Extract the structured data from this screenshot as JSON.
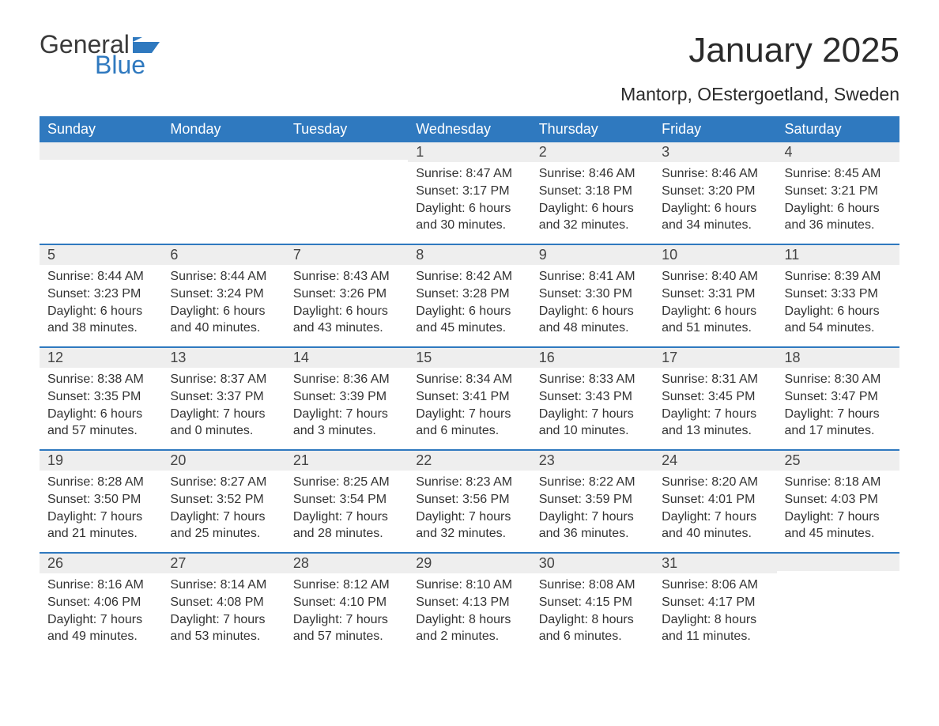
{
  "logo": {
    "text_general": "General",
    "text_blue": "Blue",
    "flag_color": "#2f79bf"
  },
  "title": "January 2025",
  "location": "Mantorp, OEstergoetland, Sweden",
  "colors": {
    "header_bg": "#2f79bf",
    "header_text": "#ffffff",
    "daynum_bg": "#eeeeee",
    "week_divider": "#2f79bf",
    "body_text": "#333333",
    "background": "#ffffff"
  },
  "day_labels": [
    "Sunday",
    "Monday",
    "Tuesday",
    "Wednesday",
    "Thursday",
    "Friday",
    "Saturday"
  ],
  "weeks": [
    [
      {
        "empty": true
      },
      {
        "empty": true
      },
      {
        "empty": true
      },
      {
        "day": "1",
        "sunrise": "8:47 AM",
        "sunset": "3:17 PM",
        "daylight": "6 hours and 30 minutes."
      },
      {
        "day": "2",
        "sunrise": "8:46 AM",
        "sunset": "3:18 PM",
        "daylight": "6 hours and 32 minutes."
      },
      {
        "day": "3",
        "sunrise": "8:46 AM",
        "sunset": "3:20 PM",
        "daylight": "6 hours and 34 minutes."
      },
      {
        "day": "4",
        "sunrise": "8:45 AM",
        "sunset": "3:21 PM",
        "daylight": "6 hours and 36 minutes."
      }
    ],
    [
      {
        "day": "5",
        "sunrise": "8:44 AM",
        "sunset": "3:23 PM",
        "daylight": "6 hours and 38 minutes."
      },
      {
        "day": "6",
        "sunrise": "8:44 AM",
        "sunset": "3:24 PM",
        "daylight": "6 hours and 40 minutes."
      },
      {
        "day": "7",
        "sunrise": "8:43 AM",
        "sunset": "3:26 PM",
        "daylight": "6 hours and 43 minutes."
      },
      {
        "day": "8",
        "sunrise": "8:42 AM",
        "sunset": "3:28 PM",
        "daylight": "6 hours and 45 minutes."
      },
      {
        "day": "9",
        "sunrise": "8:41 AM",
        "sunset": "3:30 PM",
        "daylight": "6 hours and 48 minutes."
      },
      {
        "day": "10",
        "sunrise": "8:40 AM",
        "sunset": "3:31 PM",
        "daylight": "6 hours and 51 minutes."
      },
      {
        "day": "11",
        "sunrise": "8:39 AM",
        "sunset": "3:33 PM",
        "daylight": "6 hours and 54 minutes."
      }
    ],
    [
      {
        "day": "12",
        "sunrise": "8:38 AM",
        "sunset": "3:35 PM",
        "daylight": "6 hours and 57 minutes."
      },
      {
        "day": "13",
        "sunrise": "8:37 AM",
        "sunset": "3:37 PM",
        "daylight": "7 hours and 0 minutes."
      },
      {
        "day": "14",
        "sunrise": "8:36 AM",
        "sunset": "3:39 PM",
        "daylight": "7 hours and 3 minutes."
      },
      {
        "day": "15",
        "sunrise": "8:34 AM",
        "sunset": "3:41 PM",
        "daylight": "7 hours and 6 minutes."
      },
      {
        "day": "16",
        "sunrise": "8:33 AM",
        "sunset": "3:43 PM",
        "daylight": "7 hours and 10 minutes."
      },
      {
        "day": "17",
        "sunrise": "8:31 AM",
        "sunset": "3:45 PM",
        "daylight": "7 hours and 13 minutes."
      },
      {
        "day": "18",
        "sunrise": "8:30 AM",
        "sunset": "3:47 PM",
        "daylight": "7 hours and 17 minutes."
      }
    ],
    [
      {
        "day": "19",
        "sunrise": "8:28 AM",
        "sunset": "3:50 PM",
        "daylight": "7 hours and 21 minutes."
      },
      {
        "day": "20",
        "sunrise": "8:27 AM",
        "sunset": "3:52 PM",
        "daylight": "7 hours and 25 minutes."
      },
      {
        "day": "21",
        "sunrise": "8:25 AM",
        "sunset": "3:54 PM",
        "daylight": "7 hours and 28 minutes."
      },
      {
        "day": "22",
        "sunrise": "8:23 AM",
        "sunset": "3:56 PM",
        "daylight": "7 hours and 32 minutes."
      },
      {
        "day": "23",
        "sunrise": "8:22 AM",
        "sunset": "3:59 PM",
        "daylight": "7 hours and 36 minutes."
      },
      {
        "day": "24",
        "sunrise": "8:20 AM",
        "sunset": "4:01 PM",
        "daylight": "7 hours and 40 minutes."
      },
      {
        "day": "25",
        "sunrise": "8:18 AM",
        "sunset": "4:03 PM",
        "daylight": "7 hours and 45 minutes."
      }
    ],
    [
      {
        "day": "26",
        "sunrise": "8:16 AM",
        "sunset": "4:06 PM",
        "daylight": "7 hours and 49 minutes."
      },
      {
        "day": "27",
        "sunrise": "8:14 AM",
        "sunset": "4:08 PM",
        "daylight": "7 hours and 53 minutes."
      },
      {
        "day": "28",
        "sunrise": "8:12 AM",
        "sunset": "4:10 PM",
        "daylight": "7 hours and 57 minutes."
      },
      {
        "day": "29",
        "sunrise": "8:10 AM",
        "sunset": "4:13 PM",
        "daylight": "8 hours and 2 minutes."
      },
      {
        "day": "30",
        "sunrise": "8:08 AM",
        "sunset": "4:15 PM",
        "daylight": "8 hours and 6 minutes."
      },
      {
        "day": "31",
        "sunrise": "8:06 AM",
        "sunset": "4:17 PM",
        "daylight": "8 hours and 11 minutes."
      },
      {
        "empty": true
      }
    ]
  ],
  "labels": {
    "sunrise_prefix": "Sunrise: ",
    "sunset_prefix": "Sunset: ",
    "daylight_prefix": "Daylight: "
  }
}
